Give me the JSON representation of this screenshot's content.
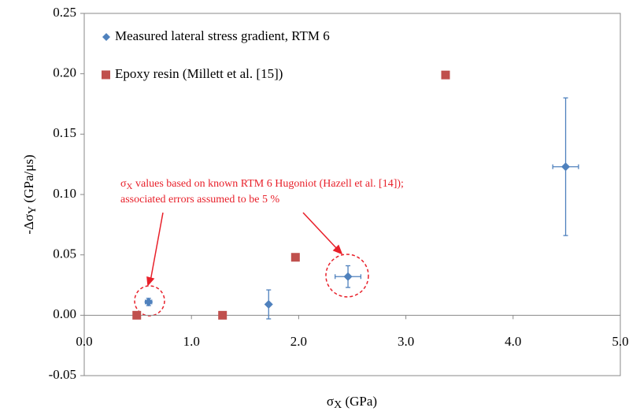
{
  "chart_data": {
    "type": "scatter",
    "x_label": {
      "parts": [
        "σ",
        "X",
        " (GPa)"
      ]
    },
    "y_label": {
      "parts": [
        "-Δσ",
        "Y",
        " (GPa/μs)"
      ]
    },
    "xlim": [
      0,
      5
    ],
    "ylim": [
      -0.05,
      0.25
    ],
    "xticks": [
      {
        "value": 0,
        "label": "0.0"
      },
      {
        "value": 1,
        "label": "1.0"
      },
      {
        "value": 2,
        "label": "2.0"
      },
      {
        "value": 3,
        "label": "3.0"
      },
      {
        "value": 4,
        "label": "4.0"
      },
      {
        "value": 5,
        "label": "5.0"
      }
    ],
    "yticks": [
      {
        "value": -0.05,
        "label": "-0.05"
      },
      {
        "value": 0,
        "label": "0.00"
      },
      0.05,
      {
        "value": 0.1,
        "label": "0.10"
      },
      0.15,
      {
        "value": 0.2,
        "label": "0.20"
      },
      0.25
    ],
    "series": [
      {
        "name": "Measured lateral stress gradient, RTM 6",
        "color": "#4f81bd",
        "marker": "diamond",
        "x": [
          0.6,
          1.72,
          2.46,
          4.49
        ],
        "values": [
          0.011,
          0.009,
          0.032,
          0.123
        ],
        "y_err": [
          0.003,
          0.012,
          0.009,
          0.057
        ],
        "x_err": [
          0.03,
          null,
          0.12,
          0.12
        ]
      },
      {
        "name": "Epoxy resin (Millett et al. [15])",
        "color": "#c0504d",
        "marker": "square",
        "x": [
          0.49,
          1.29,
          1.97,
          3.37
        ],
        "values": [
          0,
          0,
          0.048,
          0.199
        ]
      }
    ],
    "annotation": {
      "parts": [
        "σ",
        "X",
        " values based on known RTM 6 Hugoniot (Hazell et al. [14]);"
      ],
      "line2": "associated errors assumed to be   5 %"
    }
  }
}
